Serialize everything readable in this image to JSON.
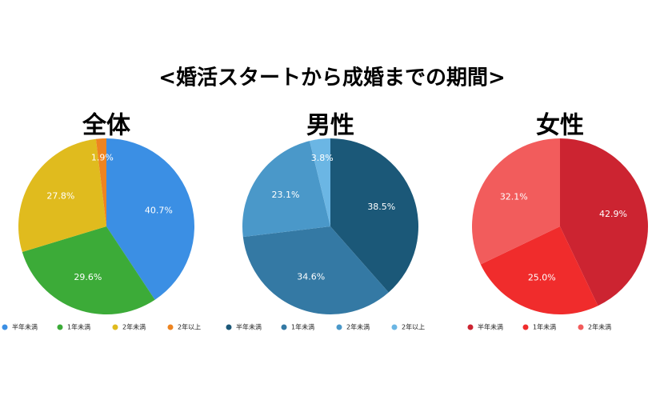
{
  "title": "<婚活スタートから成婚までの期間>",
  "chart_data": [
    {
      "type": "pie",
      "title": "全体",
      "categories": [
        "半年未満",
        "1年未満",
        "2年未満",
        "2年以上"
      ],
      "values": [
        40.7,
        29.6,
        27.8,
        1.9
      ],
      "value_labels": [
        "40.7%",
        "29.6%",
        "27.8%",
        "1.9%"
      ],
      "colors": [
        "#3b8fe4",
        "#3cab38",
        "#e0bb1e",
        "#ee8420"
      ]
    },
    {
      "type": "pie",
      "title": "男性",
      "categories": [
        "半年未満",
        "1年未満",
        "2年未満",
        "2年以上"
      ],
      "values": [
        38.5,
        34.6,
        23.1,
        3.8
      ],
      "value_labels": [
        "38.5%",
        "34.6%",
        "23.1%",
        "3.8%"
      ],
      "colors": [
        "#1b5878",
        "#3479a4",
        "#4a98c9",
        "#6bb6e4"
      ]
    },
    {
      "type": "pie",
      "title": "女性",
      "categories": [
        "半年未満",
        "1年未満",
        "2年未満"
      ],
      "values": [
        42.9,
        25.0,
        32.1
      ],
      "value_labels": [
        "42.9%",
        "25.0%",
        "32.1%"
      ],
      "colors": [
        "#cc2431",
        "#f02c2c",
        "#f25c5c"
      ]
    }
  ]
}
